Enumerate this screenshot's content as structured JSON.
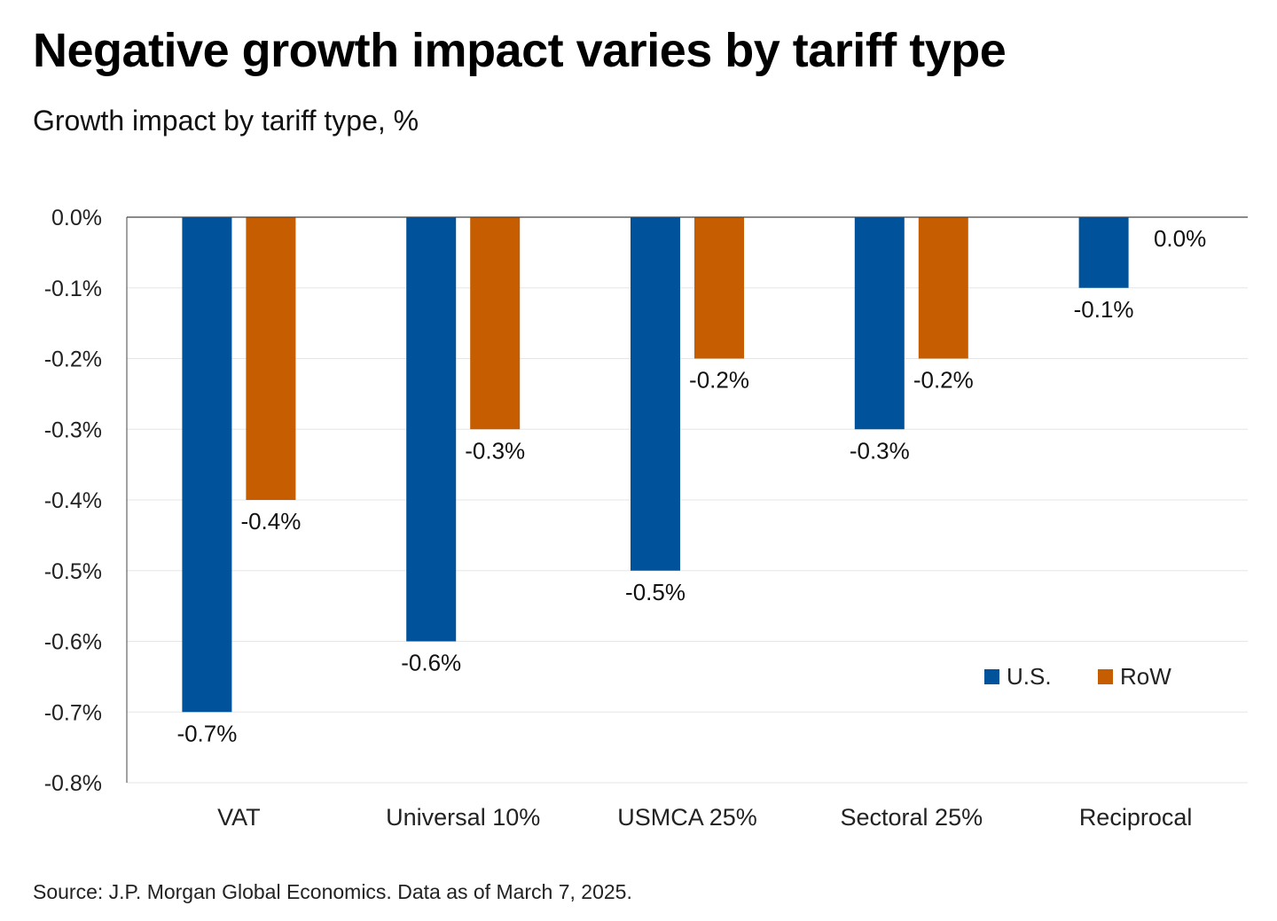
{
  "title": "Negative growth impact varies by tariff type",
  "subtitle": "Growth impact by tariff type, %",
  "source": "Source: J.P. Morgan Global Economics. Data as of March 7, 2025.",
  "colors": {
    "us": "#00529B",
    "row": "#C65D00",
    "gridline": "#E6E6E6",
    "axis": "#444444"
  },
  "chart_data": {
    "type": "bar",
    "title": "Negative growth impact varies by tariff type",
    "subtitle": "Growth impact by tariff type, %",
    "xlabel": "",
    "ylabel": "",
    "categories": [
      "VAT",
      "Universal 10%",
      "USMCA 25%",
      "Sectoral 25%",
      "Reciprocal"
    ],
    "series": [
      {
        "name": "U.S.",
        "color": "#00529B",
        "values": [
          -0.7,
          -0.6,
          -0.5,
          -0.3,
          -0.1
        ],
        "labels": [
          "-0.7%",
          "-0.6%",
          "-0.5%",
          "-0.3%",
          "-0.1%"
        ]
      },
      {
        "name": "RoW",
        "color": "#C65D00",
        "values": [
          -0.4,
          -0.3,
          -0.2,
          -0.2,
          0.0
        ],
        "labels": [
          "-0.4%",
          "-0.3%",
          "-0.2%",
          "-0.2%",
          "0.0%"
        ]
      }
    ],
    "ylim": [
      -0.8,
      0.0
    ],
    "yticks": [
      0.0,
      -0.1,
      -0.2,
      -0.3,
      -0.4,
      -0.5,
      -0.6,
      -0.7,
      -0.8
    ],
    "ytick_labels": [
      "0.0%",
      "-0.1%",
      "-0.2%",
      "-0.3%",
      "-0.4%",
      "-0.5%",
      "-0.6%",
      "-0.7%",
      "-0.8%"
    ],
    "grid": true,
    "legend": {
      "position": "lower-right",
      "entries": [
        "U.S.",
        "RoW"
      ]
    }
  }
}
